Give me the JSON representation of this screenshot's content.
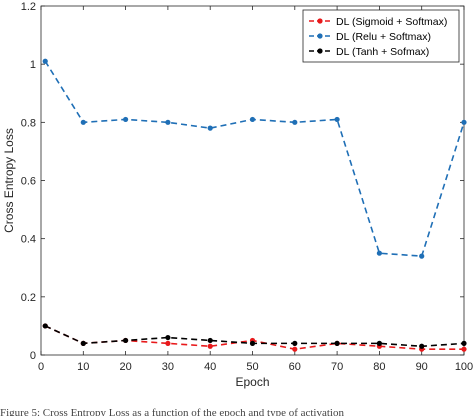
{
  "chart_data": {
    "type": "line",
    "xlabel": "Epoch",
    "ylabel": "Cross Entropy Loss",
    "xlim": [
      0,
      100
    ],
    "ylim": [
      0,
      1.2
    ],
    "xticks": [
      0,
      10,
      20,
      30,
      40,
      50,
      60,
      70,
      80,
      90,
      100
    ],
    "yticks": [
      0,
      0.2,
      0.4,
      0.6,
      0.8,
      1,
      1.2
    ],
    "ytick_labels": [
      "0",
      "0.2",
      "0.4",
      "0.6",
      "0.8",
      "1",
      "1.2"
    ],
    "grid": false,
    "legend_position": "top-right",
    "x": [
      1,
      10,
      20,
      30,
      40,
      50,
      60,
      70,
      80,
      90,
      100
    ],
    "series": [
      {
        "name": "DL (Sigmoid + Softmax)",
        "color": "#e8191b",
        "style": "dashed-marker",
        "values": [
          0.1,
          0.04,
          0.05,
          0.04,
          0.03,
          0.05,
          0.02,
          0.04,
          0.03,
          0.02,
          0.02
        ]
      },
      {
        "name": "DL (Relu + Softmax)",
        "color": "#1f6fb6",
        "style": "dashed-marker",
        "values": [
          1.01,
          0.8,
          0.81,
          0.8,
          0.78,
          0.81,
          0.8,
          0.81,
          0.35,
          0.34,
          0.8
        ]
      },
      {
        "name": "DL (Tanh + Sofmax)",
        "color": "#000000",
        "style": "dashed-marker",
        "values": [
          0.1,
          0.04,
          0.05,
          0.06,
          0.05,
          0.04,
          0.04,
          0.04,
          0.04,
          0.03,
          0.04
        ]
      }
    ]
  },
  "caption": "Figure 5: Cross Entropy Loss as a function of the epoch and type of activation"
}
